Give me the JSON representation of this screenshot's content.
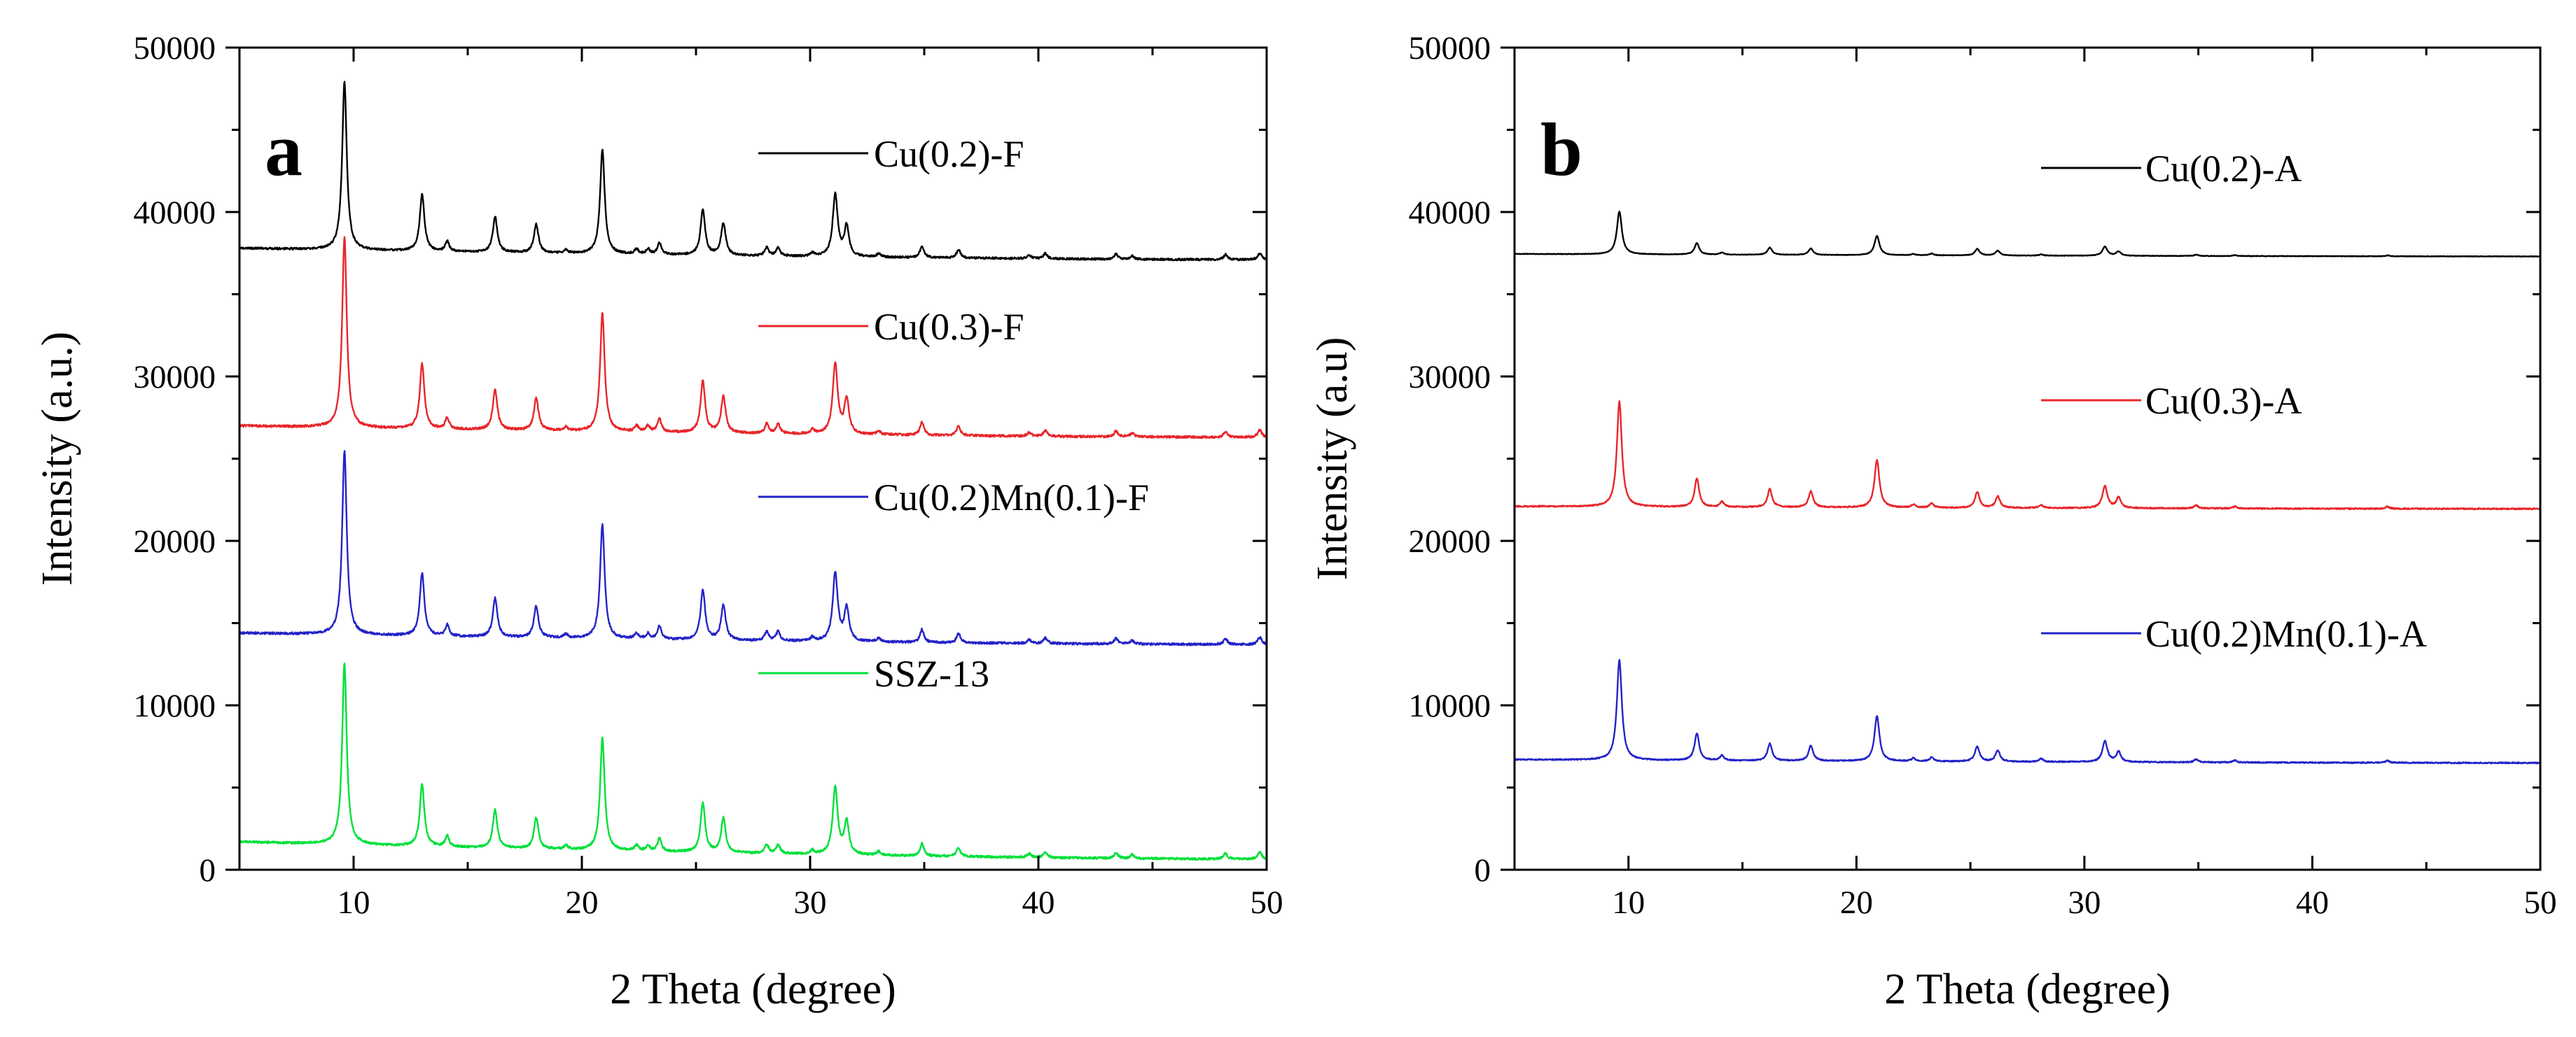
{
  "chart_data": [
    {
      "panel": "a",
      "type": "line",
      "title": "",
      "xlabel": "2 Theta (degree)",
      "ylabel": "Intensity (a.u.)",
      "xlim": [
        5,
        50
      ],
      "ylim": [
        0,
        50000
      ],
      "xticks": [
        10,
        20,
        30,
        40,
        50
      ],
      "yticks": [
        0,
        10000,
        20000,
        30000,
        40000,
        50000
      ],
      "grid": false,
      "legend_position": "top-right, beside each trace",
      "peaks": [
        {
          "theta": 9.6,
          "rel": 1.0,
          "width": 0.12
        },
        {
          "theta": 13.0,
          "rel": 0.34,
          "width": 0.12
        },
        {
          "theta": 14.1,
          "rel": 0.06,
          "width": 0.1
        },
        {
          "theta": 16.2,
          "rel": 0.21,
          "width": 0.12
        },
        {
          "theta": 18.0,
          "rel": 0.17,
          "width": 0.12
        },
        {
          "theta": 19.3,
          "rel": 0.02,
          "width": 0.1
        },
        {
          "theta": 20.9,
          "rel": 0.62,
          "width": 0.12
        },
        {
          "theta": 22.4,
          "rel": 0.03,
          "width": 0.1
        },
        {
          "theta": 22.9,
          "rel": 0.03,
          "width": 0.1
        },
        {
          "theta": 23.4,
          "rel": 0.07,
          "width": 0.1
        },
        {
          "theta": 25.3,
          "rel": 0.27,
          "width": 0.12
        },
        {
          "theta": 26.2,
          "rel": 0.19,
          "width": 0.12
        },
        {
          "theta": 28.1,
          "rel": 0.05,
          "width": 0.1
        },
        {
          "theta": 28.6,
          "rel": 0.05,
          "width": 0.1
        },
        {
          "theta": 30.1,
          "rel": 0.02,
          "width": 0.1
        },
        {
          "theta": 31.1,
          "rel": 0.37,
          "width": 0.13
        },
        {
          "theta": 31.6,
          "rel": 0.18,
          "width": 0.12
        },
        {
          "theta": 33.0,
          "rel": 0.02,
          "width": 0.1
        },
        {
          "theta": 34.9,
          "rel": 0.07,
          "width": 0.1
        },
        {
          "theta": 36.5,
          "rel": 0.05,
          "width": 0.1
        },
        {
          "theta": 39.6,
          "rel": 0.02,
          "width": 0.1
        },
        {
          "theta": 40.3,
          "rel": 0.03,
          "width": 0.1
        },
        {
          "theta": 43.4,
          "rel": 0.03,
          "width": 0.1
        },
        {
          "theta": 44.1,
          "rel": 0.02,
          "width": 0.1
        },
        {
          "theta": 48.2,
          "rel": 0.03,
          "width": 0.1
        },
        {
          "theta": 49.7,
          "rel": 0.04,
          "width": 0.1
        }
      ],
      "series": [
        {
          "name": "Cu(0.2)-F",
          "color": "#000000",
          "baseline_start": 37800,
          "baseline_end": 37100,
          "peak_height": 10200
        },
        {
          "name": "Cu(0.3)-F",
          "color": "#e8262a",
          "baseline_start": 27000,
          "baseline_end": 26300,
          "peak_height": 11600
        },
        {
          "name": "Cu(0.2)Mn(0.1)-F",
          "color": "#2323c8",
          "baseline_start": 14400,
          "baseline_end": 13700,
          "peak_height": 11200
        },
        {
          "name": "SSZ-13",
          "color": "#00e03a",
          "baseline_start": 1700,
          "baseline_end": 650,
          "peak_height": 11000
        }
      ]
    },
    {
      "panel": "b",
      "type": "line",
      "title": "",
      "xlabel": "2 Theta (degree)",
      "ylabel": "Intensity (a.u)",
      "xlim": [
        5,
        50
      ],
      "ylim": [
        0,
        50000
      ],
      "xticks": [
        10,
        20,
        30,
        40,
        50
      ],
      "yticks": [
        0,
        10000,
        20000,
        30000,
        40000,
        50000
      ],
      "grid": false,
      "legend_position": "top-right, beside each trace",
      "peaks": [
        {
          "theta": 9.6,
          "rel": 1.0,
          "width": 0.13
        },
        {
          "theta": 13.0,
          "rel": 0.27,
          "width": 0.12
        },
        {
          "theta": 14.1,
          "rel": 0.05,
          "width": 0.1
        },
        {
          "theta": 16.2,
          "rel": 0.17,
          "width": 0.12
        },
        {
          "theta": 18.0,
          "rel": 0.15,
          "width": 0.12
        },
        {
          "theta": 20.9,
          "rel": 0.45,
          "width": 0.13
        },
        {
          "theta": 22.5,
          "rel": 0.03,
          "width": 0.1
        },
        {
          "theta": 23.3,
          "rel": 0.04,
          "width": 0.1
        },
        {
          "theta": 25.3,
          "rel": 0.15,
          "width": 0.12
        },
        {
          "theta": 26.2,
          "rel": 0.11,
          "width": 0.12
        },
        {
          "theta": 28.1,
          "rel": 0.03,
          "width": 0.1
        },
        {
          "theta": 30.9,
          "rel": 0.21,
          "width": 0.13
        },
        {
          "theta": 31.5,
          "rel": 0.1,
          "width": 0.12
        },
        {
          "theta": 34.9,
          "rel": 0.03,
          "width": 0.1
        },
        {
          "theta": 36.6,
          "rel": 0.02,
          "width": 0.1
        },
        {
          "theta": 43.3,
          "rel": 0.02,
          "width": 0.1
        }
      ],
      "series": [
        {
          "name": "Cu(0.2)-A",
          "color": "#000000",
          "baseline_start": 37450,
          "baseline_end": 37300,
          "peak_height": 2600
        },
        {
          "name": "Cu(0.3)-A",
          "color": "#e8262a",
          "baseline_start": 22100,
          "baseline_end": 21950,
          "peak_height": 6400
        },
        {
          "name": "Cu(0.2)Mn(0.1)-A",
          "color": "#2323c8",
          "baseline_start": 6700,
          "baseline_end": 6500,
          "peak_height": 6100
        }
      ]
    }
  ]
}
